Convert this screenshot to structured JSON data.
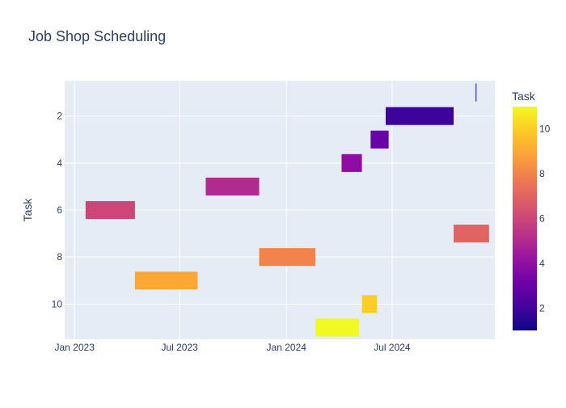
{
  "chart_data": {
    "type": "timeline",
    "title": "Job Shop Scheduling",
    "ylabel": "Task",
    "xlabel": "",
    "x_ticks": [
      {
        "date": "2023-01-01",
        "label": "Jan 2023"
      },
      {
        "date": "2023-07-01",
        "label": "Jul 2023"
      },
      {
        "date": "2024-01-01",
        "label": "Jan 2024"
      },
      {
        "date": "2024-07-01",
        "label": "Jul 2024"
      }
    ],
    "xlim": [
      "2022-12-15",
      "2024-12-25"
    ],
    "y_ticks": [
      2,
      4,
      6,
      8,
      10
    ],
    "ylim": [
      11.5,
      0.5
    ],
    "y_reversed": true,
    "grid": true,
    "plot_bg": "#e5ecf6",
    "colorbar": {
      "title": "Task",
      "range": [
        1,
        11
      ],
      "ticks": [
        2,
        4,
        6,
        8,
        10
      ],
      "colorscale": [
        "#0d0887",
        "#46039f",
        "#7201a8",
        "#9c179e",
        "#bd3786",
        "#d8576b",
        "#ed7953",
        "#fb9f3a",
        "#fdca26",
        "#f0f921"
      ]
    },
    "tasks": [
      {
        "task": 1,
        "start": "2024-11-22",
        "end": "2024-11-23",
        "color": "#0d0887"
      },
      {
        "task": 2,
        "start": "2024-06-20",
        "end": "2024-10-15",
        "color": "#3d049b"
      },
      {
        "task": 3,
        "start": "2024-05-25",
        "end": "2024-06-25",
        "color": "#6a00a8"
      },
      {
        "task": 4,
        "start": "2024-04-05",
        "end": "2024-05-10",
        "color": "#8f0da4"
      },
      {
        "task": 5,
        "start": "2023-08-15",
        "end": "2023-11-15",
        "color": "#b12a90"
      },
      {
        "task": 6,
        "start": "2023-01-20",
        "end": "2023-04-15",
        "color": "#cc4778"
      },
      {
        "task": 7,
        "start": "2024-10-15",
        "end": "2024-12-15",
        "color": "#e16462"
      },
      {
        "task": 8,
        "start": "2023-11-15",
        "end": "2024-02-20",
        "color": "#f2844b"
      },
      {
        "task": 9,
        "start": "2023-04-15",
        "end": "2023-08-01",
        "color": "#fca636"
      },
      {
        "task": 10,
        "start": "2024-05-10",
        "end": "2024-06-05",
        "color": "#fcce25"
      },
      {
        "task": 11,
        "start": "2024-02-20",
        "end": "2024-05-05",
        "color": "#f0f921"
      }
    ]
  }
}
